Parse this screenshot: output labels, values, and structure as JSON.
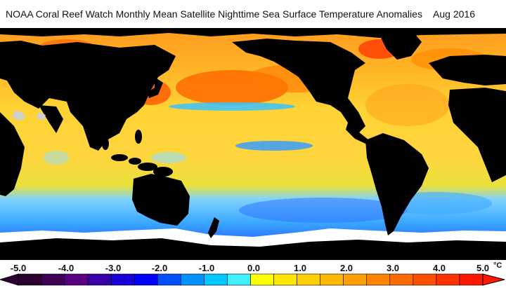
{
  "title": {
    "main": "NOAA Coral Reef Watch Monthly Mean Satellite Nighttime Sea Surface Temperature Anomalies",
    "date": "Aug 2016"
  },
  "map": {
    "projection": "equirectangular",
    "land_color": "#000000",
    "ice_color": "#ffffff"
  },
  "legend": {
    "unit": "°C",
    "ticks": [
      "-5.0",
      "-4.0",
      "-3.0",
      "-2.0",
      "-1.0",
      "0.0",
      "1.0",
      "2.0",
      "3.0",
      "4.0",
      "5.0"
    ],
    "colors": [
      "#2a0030",
      "#3d0055",
      "#58007f",
      "#3a00a8",
      "#1900d6",
      "#0000ff",
      "#0050ff",
      "#0090ff",
      "#00c8ff",
      "#40f0ff",
      "#ffff00",
      "#ffe600",
      "#ffd000",
      "#ffb800",
      "#ff9e00",
      "#ff8400",
      "#ff6a00",
      "#ff4f00",
      "#ff3200",
      "#ff1800"
    ]
  }
}
